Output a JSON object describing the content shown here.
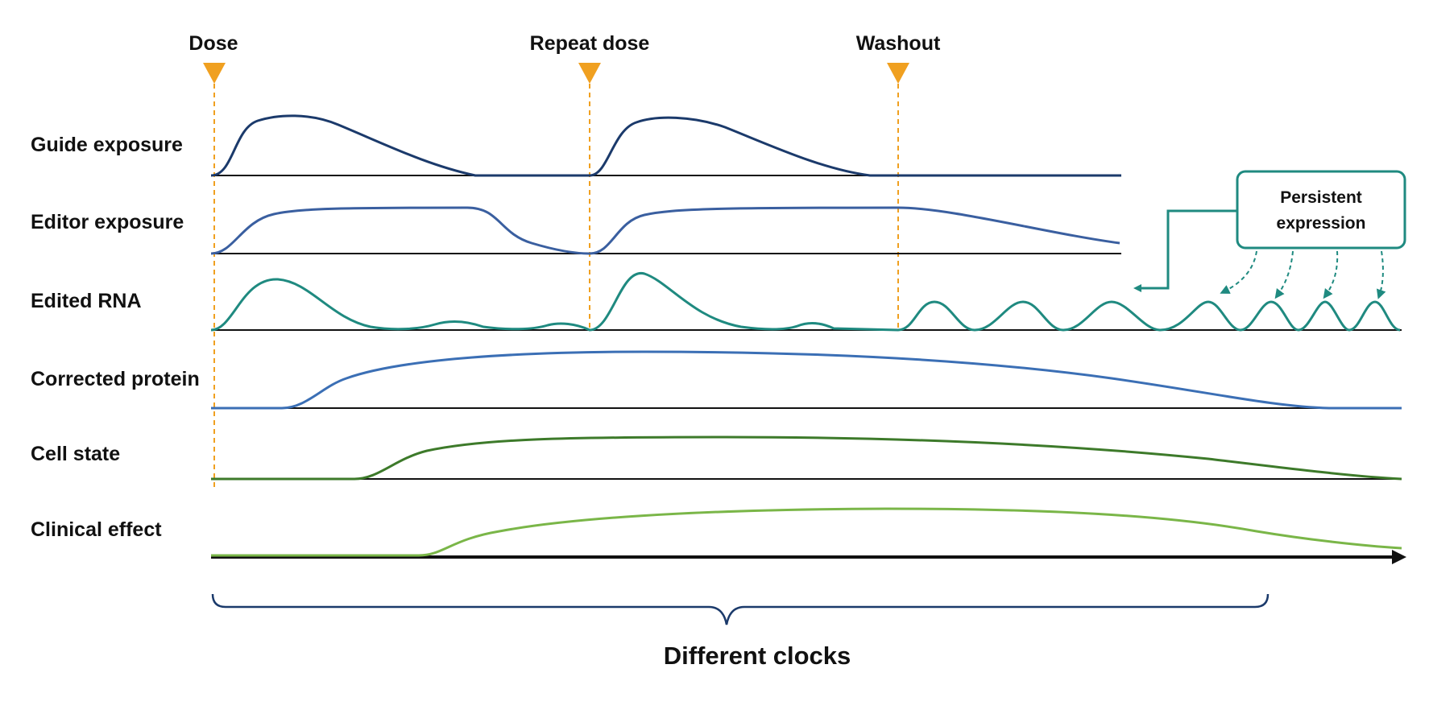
{
  "events": [
    {
      "label": "Dose"
    },
    {
      "label": "Repeat dose"
    },
    {
      "label": "Washout"
    }
  ],
  "rows": [
    {
      "label": "Guide exposure",
      "color": "#1b3a6b"
    },
    {
      "label": "Editor exposure",
      "color": "#3a5fa0"
    },
    {
      "label": "Edited RNA",
      "color": "#1f8a80"
    },
    {
      "label": "Corrected protein",
      "color": "#3b6fb5"
    },
    {
      "label": "Cell state",
      "color": "#3d7a2a"
    },
    {
      "label": "Clinical effect",
      "color": "#7ab648"
    }
  ],
  "callout": {
    "line1": "Persistent",
    "line2": "expression",
    "color": "#1f8a80"
  },
  "caption": "Different clocks",
  "colors": {
    "marker": "#f0a020",
    "axis": "#111111",
    "brace": "#1b3a6b"
  }
}
